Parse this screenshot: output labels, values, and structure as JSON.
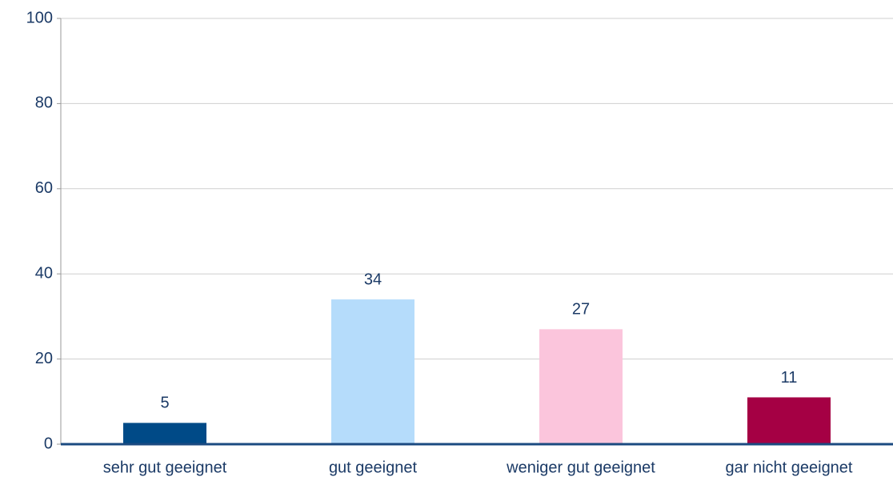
{
  "chart_data": {
    "type": "bar",
    "categories": [
      "sehr gut geeignet",
      "gut geeignet",
      "weniger gut geeignet",
      "gar nicht geeignet"
    ],
    "values": [
      5,
      34,
      27,
      11
    ],
    "colors": [
      "#004a87",
      "#b5dcfb",
      "#fbc5dc",
      "#a50044"
    ],
    "ylim": [
      0,
      100
    ],
    "yticks": [
      0,
      20,
      40,
      60,
      80,
      100
    ],
    "grid": true
  }
}
